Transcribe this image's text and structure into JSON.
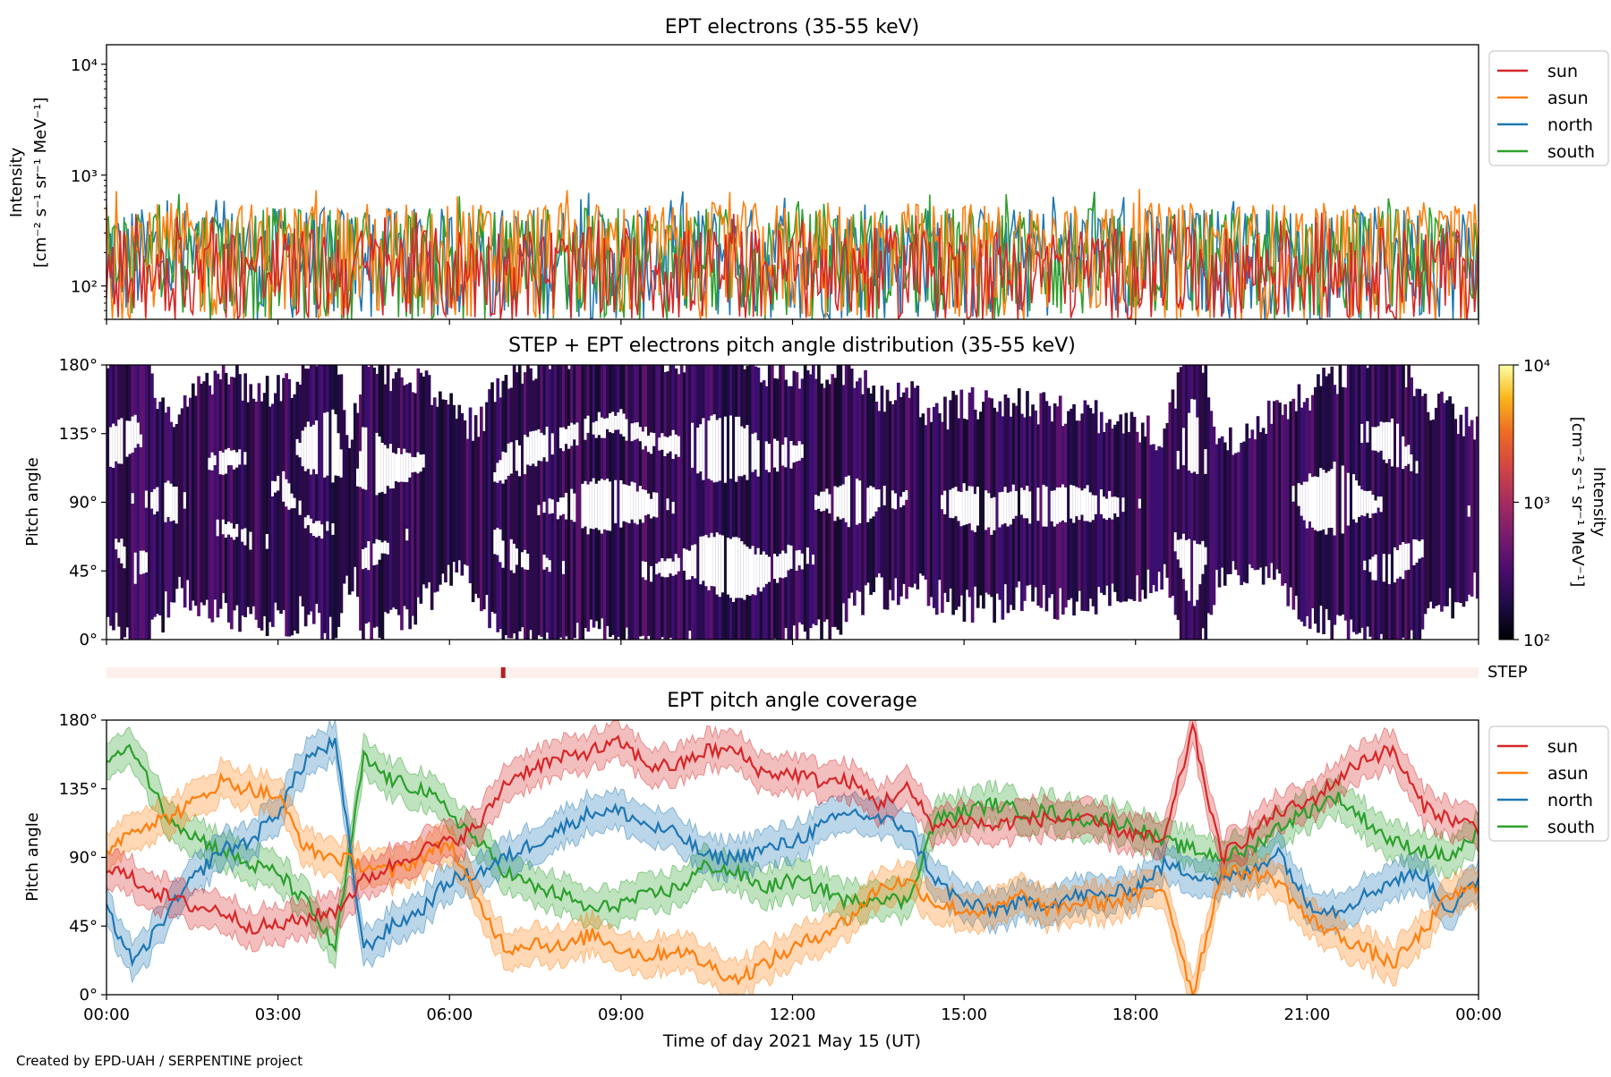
{
  "footer": "Created by EPD-UAH / SERPENTINE project",
  "colors": {
    "sun": "#d62728",
    "asun": "#ff7f0e",
    "north": "#1f77b4",
    "south": "#2ca02c",
    "step_track": "#fdf0ec",
    "step_mark": "#b22222"
  },
  "chart_data": [
    {
      "type": "line",
      "title": "EPT electrons (35-55 keV)",
      "ylabel_line1": "Intensity",
      "ylabel_line2": "[cm⁻² s⁻¹ sr⁻¹ MeV⁻¹]",
      "yscale": "log",
      "ylim": [
        50,
        15000
      ],
      "yticks": [
        {
          "value": 100,
          "label": "10²"
        },
        {
          "value": 1000,
          "label": "10³"
        },
        {
          "value": 10000,
          "label": "10⁴"
        }
      ],
      "xlim_hours": [
        0,
        24
      ],
      "legend_position": "outside-upper-right",
      "series": [
        {
          "name": "sun",
          "color": "#d62728",
          "typical_range": [
            50,
            300
          ]
        },
        {
          "name": "asun",
          "color": "#ff7f0e",
          "typical_range": [
            50,
            500
          ]
        },
        {
          "name": "north",
          "color": "#1f77b4",
          "typical_range": [
            50,
            450
          ]
        },
        {
          "name": "south",
          "color": "#2ca02c",
          "typical_range": [
            50,
            450
          ]
        }
      ],
      "peak_value": 750
    },
    {
      "type": "heatmap",
      "title": "STEP + EPT electrons pitch angle distribution (35-55 keV)",
      "ylabel": "Pitch angle",
      "ylim": [
        0,
        180
      ],
      "yticks": [
        "0°",
        "45°",
        "90°",
        "135°",
        "180°"
      ],
      "colorbar": {
        "scale": "log",
        "range": [
          100,
          10000
        ],
        "ticks": [
          {
            "value": 100,
            "label": "10²"
          },
          {
            "value": 1000,
            "label": "10³"
          },
          {
            "value": 10000,
            "label": "10⁴"
          }
        ],
        "label_line1": "Intensity",
        "label_line2": "[cm⁻² s⁻¹ sr⁻¹ MeV⁻¹]",
        "colormap": "inferno"
      }
    },
    {
      "type": "heatmap",
      "label": "STEP",
      "marker_hour": 6.93
    },
    {
      "type": "line",
      "title": "EPT pitch angle coverage",
      "ylabel": "Pitch angle",
      "xlabel": "Time of day 2021 May 15 (UT)",
      "ylim": [
        0,
        180
      ],
      "yticks": [
        "0°",
        "45°",
        "90°",
        "135°",
        "180°"
      ],
      "xticks": [
        "00:00",
        "03:00",
        "06:00",
        "09:00",
        "12:00",
        "15:00",
        "18:00",
        "21:00",
        "00:00"
      ],
      "legend_position": "outside-upper-right",
      "x_hours": [
        0,
        0.5,
        1,
        1.5,
        2,
        2.5,
        3,
        3.5,
        4,
        4.5,
        5,
        5.5,
        6,
        6.5,
        7,
        7.5,
        8,
        8.5,
        9,
        9.5,
        10,
        10.5,
        11,
        11.5,
        12,
        12.5,
        13,
        13.5,
        14,
        14.5,
        15,
        15.5,
        16,
        16.5,
        17,
        17.5,
        18,
        18.5,
        19,
        19.5,
        20,
        20.5,
        21,
        21.5,
        22,
        22.5,
        23,
        23.5,
        24
      ],
      "series": [
        {
          "name": "sun",
          "color": "#d62728",
          "y": [
            85,
            75,
            65,
            58,
            55,
            45,
            45,
            50,
            55,
            75,
            85,
            95,
            100,
            110,
            140,
            150,
            155,
            160,
            165,
            150,
            150,
            160,
            160,
            145,
            145,
            140,
            140,
            125,
            135,
            110,
            115,
            110,
            115,
            115,
            115,
            110,
            105,
            100,
            175,
            90,
            105,
            120,
            125,
            140,
            155,
            160,
            125,
            115,
            110
          ]
        },
        {
          "name": "asun",
          "color": "#ff7f0e",
          "y": [
            95,
            110,
            115,
            125,
            140,
            135,
            130,
            95,
            90,
            85,
            80,
            90,
            100,
            60,
            30,
            35,
            30,
            40,
            30,
            25,
            30,
            20,
            10,
            20,
            30,
            40,
            50,
            70,
            75,
            60,
            55,
            55,
            65,
            55,
            60,
            60,
            65,
            70,
            0,
            80,
            80,
            75,
            50,
            40,
            30,
            20,
            40,
            65,
            70
          ]
        },
        {
          "name": "north",
          "color": "#1f77b4",
          "y": [
            55,
            20,
            50,
            75,
            95,
            100,
            120,
            155,
            165,
            30,
            45,
            55,
            75,
            80,
            90,
            100,
            110,
            120,
            120,
            110,
            105,
            90,
            90,
            95,
            100,
            110,
            120,
            115,
            110,
            75,
            60,
            55,
            60,
            60,
            65,
            65,
            70,
            85,
            80,
            75,
            80,
            95,
            60,
            55,
            65,
            75,
            80,
            55,
            75
          ]
        },
        {
          "name": "south",
          "color": "#2ca02c",
          "y": [
            155,
            160,
            120,
            105,
            95,
            85,
            80,
            60,
            30,
            155,
            140,
            135,
            120,
            100,
            80,
            70,
            65,
            55,
            60,
            65,
            70,
            85,
            80,
            70,
            75,
            70,
            60,
            65,
            60,
            115,
            120,
            125,
            120,
            120,
            115,
            115,
            110,
            100,
            95,
            90,
            95,
            110,
            120,
            130,
            115,
            100,
            95,
            90,
            105
          ]
        }
      ]
    }
  ]
}
